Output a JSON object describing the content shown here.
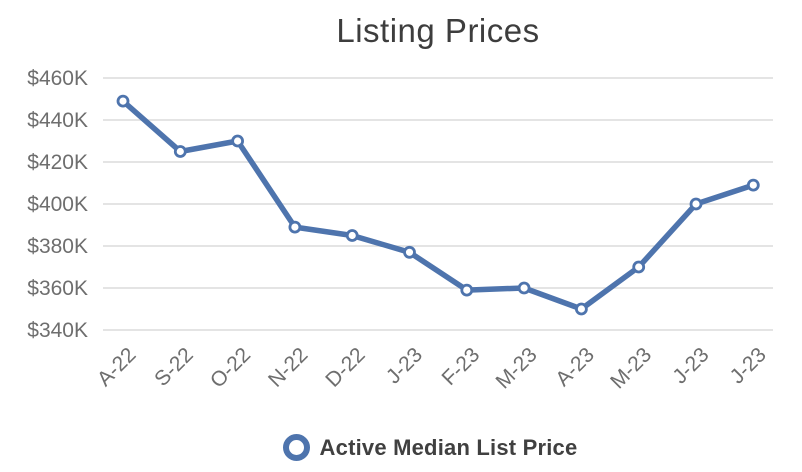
{
  "chart_data": {
    "type": "line",
    "title": "Listing Prices",
    "categories": [
      "A-22",
      "S-22",
      "O-22",
      "N-22",
      "D-22",
      "J-23",
      "F-23",
      "M-23",
      "A-23",
      "M-23",
      "J-23",
      "J-23"
    ],
    "series": [
      {
        "name": "Active Median List Price",
        "values": [
          449,
          425,
          430,
          389,
          385,
          377,
          359,
          360,
          350,
          370,
          400,
          409
        ]
      }
    ],
    "y_axis": {
      "tick_labels": [
        "$460K",
        "$440K",
        "$420K",
        "$400K",
        "$380K",
        "$360K",
        "$340K"
      ],
      "tick_values": [
        460,
        440,
        420,
        400,
        380,
        360,
        340
      ],
      "range": [
        340,
        460
      ],
      "unit_format": "$ thousands"
    },
    "x_axis": {
      "label_rotation_deg": -45
    },
    "grid": "horizontal",
    "legend": {
      "label": "Active Median List Price",
      "position": "bottom",
      "marker": "ring"
    },
    "colors": {
      "line": "#4e74ad",
      "marker_fill": "#ffffff",
      "gridline": "#dcdcdc",
      "title_text": "#3d3d3d",
      "axis_text": "#6e6e6e",
      "legend_text": "#404040",
      "background": "#ffffff"
    }
  }
}
